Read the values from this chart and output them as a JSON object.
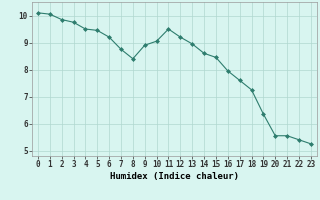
{
  "x": [
    0,
    1,
    2,
    3,
    4,
    5,
    6,
    7,
    8,
    9,
    10,
    11,
    12,
    13,
    14,
    15,
    16,
    17,
    18,
    19,
    20,
    21,
    22,
    23
  ],
  "y": [
    10.1,
    10.05,
    9.85,
    9.75,
    9.5,
    9.45,
    9.2,
    8.75,
    8.4,
    8.9,
    9.05,
    9.5,
    9.2,
    8.95,
    8.6,
    8.45,
    7.95,
    7.6,
    7.25,
    6.35,
    5.55,
    5.55,
    5.4,
    5.25
  ],
  "line_color": "#2e7d6e",
  "marker": "D",
  "marker_size": 2.0,
  "bg_color": "#d8f5f0",
  "grid_color": "#b0d8d0",
  "xlabel": "Humidex (Indice chaleur)",
  "xlim": [
    -0.5,
    23.5
  ],
  "ylim": [
    4.8,
    10.5
  ],
  "yticks": [
    5,
    6,
    7,
    8,
    9,
    10
  ],
  "xticks": [
    0,
    1,
    2,
    3,
    4,
    5,
    6,
    7,
    8,
    9,
    10,
    11,
    12,
    13,
    14,
    15,
    16,
    17,
    18,
    19,
    20,
    21,
    22,
    23
  ],
  "xlabel_fontsize": 6.5,
  "tick_fontsize": 5.5,
  "line_width": 0.8
}
